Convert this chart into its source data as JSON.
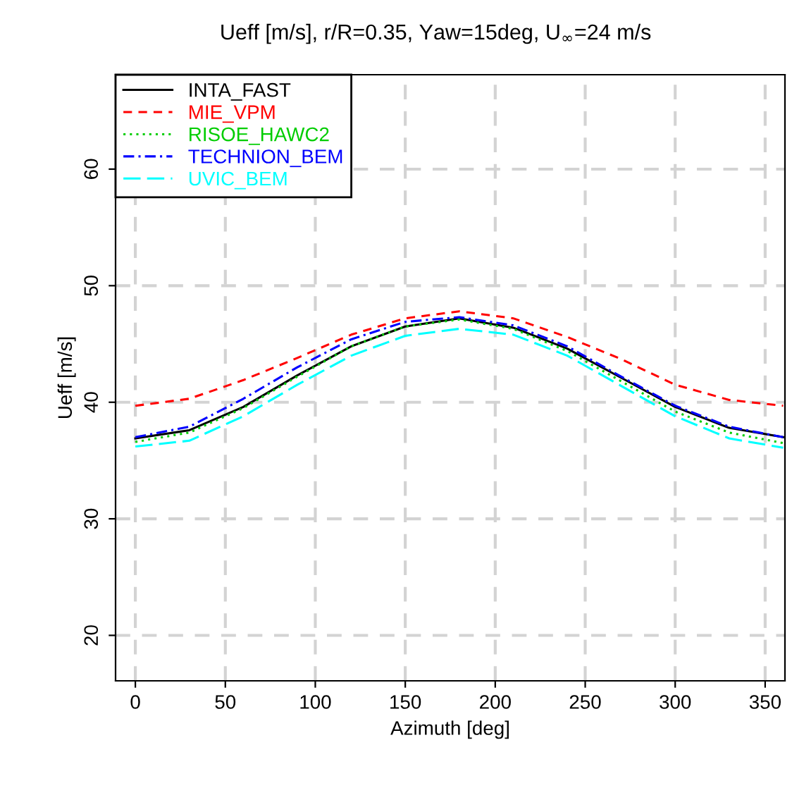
{
  "chart_data": {
    "type": "line",
    "title": "Ueff [m/s], r/R=0.35, Yaw=15deg, U$_{∞}$=24 m/s",
    "xlabel": "Azimuth [deg]",
    "ylabel": "Ueff [m/s]",
    "x": [
      0,
      30,
      60,
      90,
      120,
      150,
      180,
      210,
      240,
      270,
      300,
      330,
      360
    ],
    "series": [
      {
        "name": "INTA_FAST",
        "color": "#000000",
        "line_style": "solid",
        "values": [
          36.9,
          37.6,
          39.6,
          42.3,
          44.8,
          46.5,
          47.2,
          46.4,
          44.6,
          42.1,
          39.6,
          37.8,
          37.0
        ]
      },
      {
        "name": "MIE_VPM",
        "color": "#ff0000",
        "line_style": "dashed",
        "values": [
          39.7,
          40.3,
          41.9,
          43.8,
          45.8,
          47.2,
          47.8,
          47.2,
          45.6,
          43.7,
          41.5,
          40.2,
          39.7
        ]
      },
      {
        "name": "RISOE_HAWC2",
        "color": "#00cd00",
        "line_style": "dotted",
        "values": [
          36.6,
          37.4,
          39.5,
          42.2,
          44.8,
          46.5,
          47.1,
          46.3,
          44.4,
          41.8,
          39.2,
          37.4,
          36.5
        ]
      },
      {
        "name": "TECHNION_BEM",
        "color": "#0000ff",
        "line_style": "dashdot",
        "values": [
          37.0,
          37.9,
          40.3,
          43.0,
          45.4,
          46.9,
          47.3,
          46.6,
          44.8,
          42.2,
          39.7,
          37.9,
          37.0
        ]
      },
      {
        "name": "UVIC_BEM",
        "color": "#00ffff",
        "line_style": "longdash",
        "values": [
          36.2,
          36.7,
          38.8,
          41.5,
          44.0,
          45.7,
          46.3,
          45.8,
          44.0,
          41.4,
          38.8,
          36.9,
          36.1
        ]
      }
    ],
    "xlim": [
      -11,
      361
    ],
    "ylim": [
      16.1,
      68.1
    ],
    "xticks": [
      0,
      50,
      100,
      150,
      200,
      250,
      300,
      350
    ],
    "yticks": [
      20,
      30,
      40,
      50,
      60
    ],
    "grid": true,
    "legend": "top left",
    "marker": "none"
  }
}
